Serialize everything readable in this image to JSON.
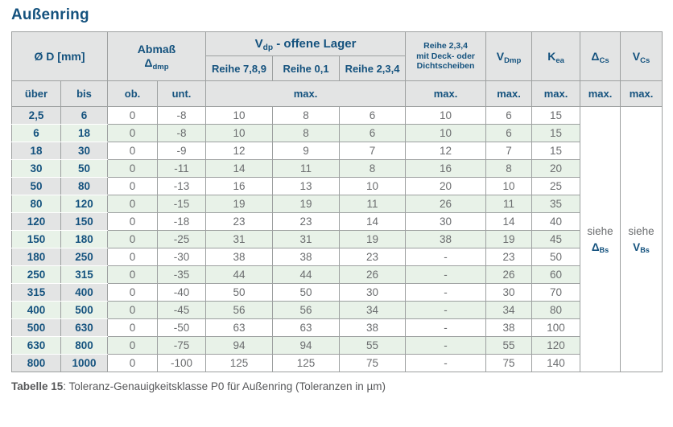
{
  "title": "Außenring",
  "caption": {
    "bold": "Tabelle 15",
    "rest": ": Toleranz-Genauigkeitsklasse P0 für Außenring (Toleranzen in µm)"
  },
  "colors": {
    "accent_blue": "#14527e",
    "header_bg": "#e3e4e4",
    "row_green": "#e8f2e8",
    "border_gray": "#9da0a0",
    "data_text_gray": "#6b6d6f"
  },
  "table": {
    "header": {
      "d_label": "Ø D  [mm]",
      "abmass_line1": "Abmaß",
      "abmass_sym": {
        "base": "Δ",
        "sub": "dmp"
      },
      "vdp": {
        "base": "V",
        "sub": "dp",
        "rest": "  -  offene Lager"
      },
      "reihe_789": "Reihe 7,8,9",
      "reihe_01": "Reihe 0,1",
      "reihe_234": "Reihe 2,3,4",
      "deck": [
        "Reihe 2,3,4",
        "mit Deck- oder",
        "Dichtscheiben"
      ],
      "vdmp": {
        "base": "V",
        "sub": "Dmp"
      },
      "kea": {
        "base": "K",
        "sub": "ea"
      },
      "dcs": {
        "base": "Δ",
        "sub": "Cs"
      },
      "vcs": {
        "base": "V",
        "sub": "Cs"
      },
      "ueber": "über",
      "bis": "bis",
      "ob": "ob.",
      "unt": "unt.",
      "max": "max."
    },
    "columns": [
      "über",
      "bis",
      "ob.",
      "unt.",
      "Reihe 7,8,9",
      "Reihe 0,1",
      "Reihe 2,3,4",
      "Reihe 2,3,4 mit Deck- oder Dichtscheiben",
      "V Dmp",
      "K ea"
    ],
    "rows": [
      [
        "2,5",
        "6",
        "0",
        "-8",
        "10",
        "8",
        "6",
        "10",
        "6",
        "15"
      ],
      [
        "6",
        "18",
        "0",
        "-8",
        "10",
        "8",
        "6",
        "10",
        "6",
        "15"
      ],
      [
        "18",
        "30",
        "0",
        "-9",
        "12",
        "9",
        "7",
        "12",
        "7",
        "15"
      ],
      [
        "30",
        "50",
        "0",
        "-11",
        "14",
        "11",
        "8",
        "16",
        "8",
        "20"
      ],
      [
        "50",
        "80",
        "0",
        "-13",
        "16",
        "13",
        "10",
        "20",
        "10",
        "25"
      ],
      [
        "80",
        "120",
        "0",
        "-15",
        "19",
        "19",
        "11",
        "26",
        "11",
        "35"
      ],
      [
        "120",
        "150",
        "0",
        "-18",
        "23",
        "23",
        "14",
        "30",
        "14",
        "40"
      ],
      [
        "150",
        "180",
        "0",
        "-25",
        "31",
        "31",
        "19",
        "38",
        "19",
        "45"
      ],
      [
        "180",
        "250",
        "0",
        "-30",
        "38",
        "38",
        "23",
        "-",
        "23",
        "50"
      ],
      [
        "250",
        "315",
        "0",
        "-35",
        "44",
        "44",
        "26",
        "-",
        "26",
        "60"
      ],
      [
        "315",
        "400",
        "0",
        "-40",
        "50",
        "50",
        "30",
        "-",
        "30",
        "70"
      ],
      [
        "400",
        "500",
        "0",
        "-45",
        "56",
        "56",
        "34",
        "-",
        "34",
        "80"
      ],
      [
        "500",
        "630",
        "0",
        "-50",
        "63",
        "63",
        "38",
        "-",
        "38",
        "100"
      ],
      [
        "630",
        "800",
        "0",
        "-75",
        "94",
        "94",
        "55",
        "-",
        "55",
        "120"
      ],
      [
        "800",
        "1000",
        "0",
        "-100",
        "125",
        "125",
        "75",
        "-",
        "75",
        "140"
      ]
    ],
    "siehe_dbs": {
      "line1": "siehe",
      "base": "Δ",
      "sub": "Bs"
    },
    "siehe_vbs": {
      "line1": "siehe",
      "base": "V",
      "sub": "Bs"
    }
  }
}
